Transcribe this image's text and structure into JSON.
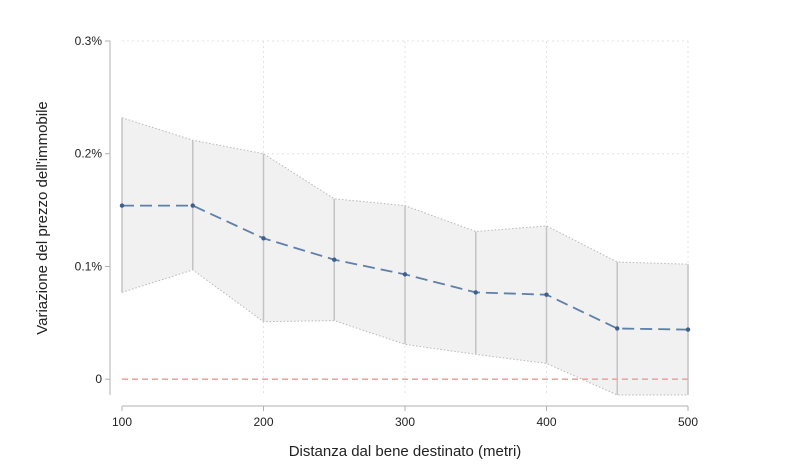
{
  "chart_data": {
    "type": "line",
    "title": "",
    "xlabel": "Distanza dal bene destinato (metri)",
    "ylabel": "Variazione del prezzo dell'immobile",
    "x": [
      100,
      150,
      200,
      250,
      300,
      350,
      400,
      450,
      500
    ],
    "series": [
      {
        "values": [
          0.154,
          0.154,
          0.125,
          0.106,
          0.093,
          0.077,
          0.075,
          0.045,
          0.044
        ],
        "ci_lower": [
          0.077,
          0.097,
          0.051,
          0.052,
          0.031,
          0.022,
          0.014,
          -0.014,
          -0.014
        ],
        "ci_upper": [
          0.232,
          0.212,
          0.2,
          0.16,
          0.154,
          0.131,
          0.136,
          0.104,
          0.102
        ]
      }
    ],
    "xlim": [
      100,
      500
    ],
    "ylim": [
      -0.014,
      0.3
    ],
    "xticks": [
      100,
      200,
      300,
      400,
      500
    ],
    "xtick_labels": [
      "100",
      "200",
      "300",
      "400",
      "500"
    ],
    "yticks": [
      0,
      0.1,
      0.2,
      0.3
    ],
    "ytick_labels": [
      "0",
      "0.1%",
      "0.2%",
      "0.3%"
    ],
    "reference_line": {
      "y": 0
    },
    "grid": true,
    "colors": {
      "line": "#5e7fa8",
      "point": "#3b5f8f",
      "band": "#f1f1f1",
      "band_edge": "#b9b9b9",
      "error_bar": "#c4c4c4",
      "reference": "#f2a3a3",
      "grid": "#e3e3e3",
      "axis": "#b0b0b0"
    }
  }
}
